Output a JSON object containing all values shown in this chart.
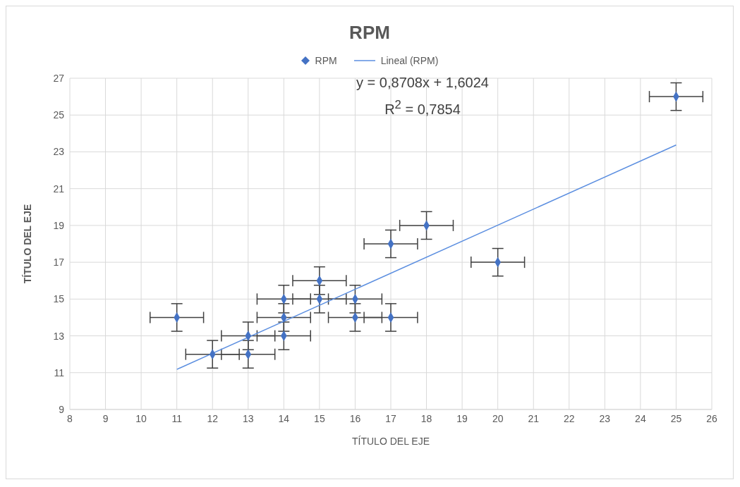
{
  "chart_data": {
    "type": "scatter",
    "title": "RPM",
    "xlabel": "TÍTULO DEL EJE",
    "ylabel": "TÍTULO DEL EJE",
    "annotations": [
      "y = 0,8708x + 1,6024",
      "R$^{2}$ = 0,7854"
    ],
    "xlim": [
      8,
      26
    ],
    "xticks": [
      8,
      9,
      10,
      11,
      12,
      13,
      14,
      15,
      16,
      17,
      18,
      19,
      20,
      21,
      22,
      23,
      24,
      25,
      26
    ],
    "ylim": [
      9,
      27
    ],
    "yticks": [
      9,
      11,
      13,
      15,
      17,
      19,
      21,
      23,
      25,
      27
    ],
    "grid": true,
    "legend": "top",
    "series": [
      {
        "name": "RPM",
        "marker": "diamond",
        "color": "#4472c4",
        "x": [
          11,
          12,
          13,
          13,
          14,
          14,
          14,
          15,
          15,
          16,
          16,
          17,
          17,
          18,
          20,
          25
        ],
        "values": [
          14,
          12,
          13,
          12,
          15,
          14,
          13,
          16,
          15,
          15,
          14,
          18,
          14,
          19,
          17,
          26
        ],
        "errors": [
          0.75,
          0.75,
          0.75,
          0.75,
          0.75,
          0.75,
          0.75,
          0.75,
          0.75,
          0.75,
          0.75,
          0.75,
          0.75,
          0.75,
          0.75,
          0.75
        ],
        "xerrors": [
          0.75,
          0.75,
          0.75,
          0.75,
          0.75,
          0.75,
          0.75,
          0.75,
          0.75,
          0.75,
          0.75,
          0.75,
          0.75,
          0.75,
          0.75,
          0.75
        ]
      },
      {
        "name": "Lineal (RPM)",
        "type": "line",
        "marker": "none",
        "color": "#5b8ee0",
        "line_style": "solid",
        "x": [
          11,
          25
        ],
        "values": [
          11.18,
          23.37
        ]
      }
    ]
  }
}
